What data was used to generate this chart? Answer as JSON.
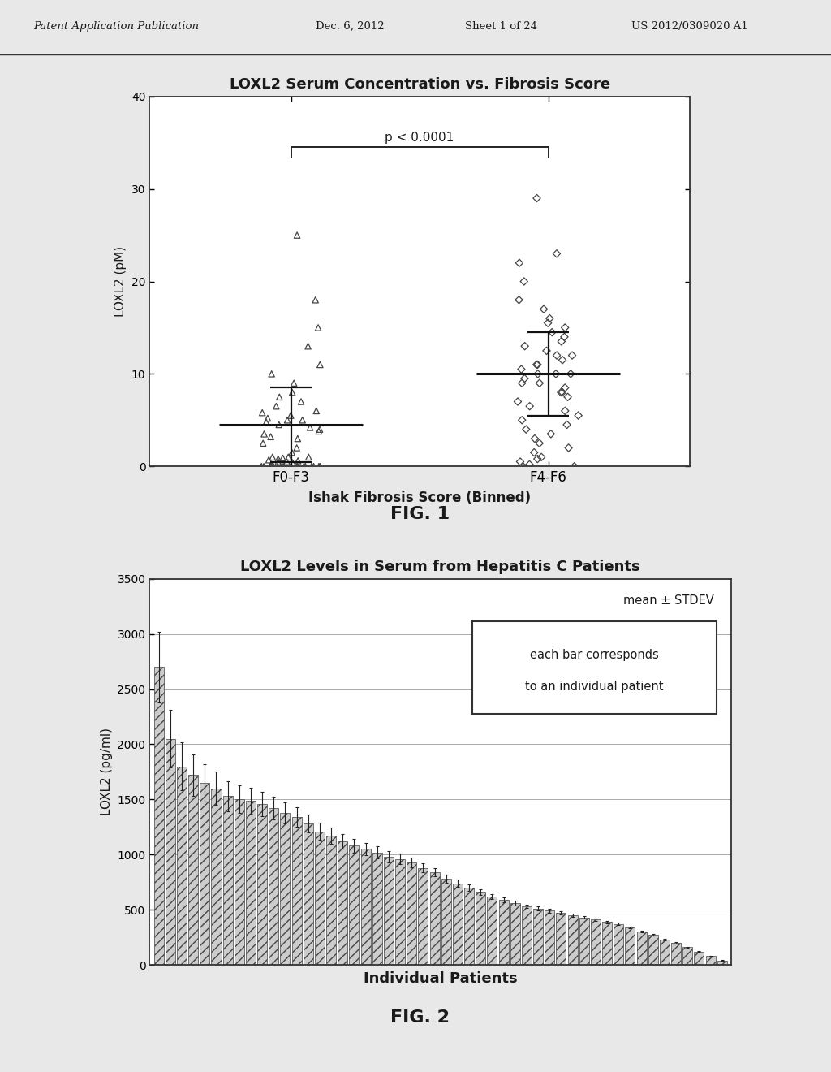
{
  "fig1_title": "LOXL2 Serum Concentration vs. Fibrosis Score",
  "fig1_xlabel": "Ishak Fibrosis Score (Binned)",
  "fig1_ylabel": "LOXL2 (pM)",
  "fig1_categories": [
    "F0-F3",
    "F4-F6"
  ],
  "fig1_ylim": [
    0,
    40
  ],
  "fig1_yticks": [
    0,
    10,
    20,
    30,
    40
  ],
  "fig1_pvalue": "p < 0.0001",
  "fig1_group1_points": [
    0.0,
    0.0,
    0.0,
    0.0,
    0.0,
    0.0,
    0.0,
    0.0,
    0.0,
    0.0,
    0.0,
    0.0,
    0.0,
    0.0,
    0.0,
    0.2,
    0.3,
    0.4,
    0.5,
    0.5,
    0.6,
    0.7,
    0.8,
    0.9,
    1.0,
    1.0,
    1.0,
    1.5,
    2.0,
    2.5,
    3.0,
    3.2,
    3.5,
    3.8,
    4.0,
    4.2,
    4.5,
    4.8,
    5.0,
    5.0,
    5.2,
    5.5,
    5.8,
    6.0,
    6.5,
    7.0,
    7.5,
    8.0,
    9.0,
    10.0,
    11.0,
    13.0,
    15.0,
    18.0,
    25.0
  ],
  "fig1_group1_mean": 4.5,
  "fig1_group1_sd": 4.0,
  "fig1_group2_points": [
    0.0,
    0.0,
    0.2,
    0.5,
    0.8,
    1.0,
    1.5,
    2.0,
    2.5,
    3.0,
    3.5,
    4.0,
    4.5,
    5.0,
    5.5,
    6.0,
    6.5,
    7.0,
    7.5,
    8.0,
    8.0,
    8.5,
    9.0,
    9.0,
    9.5,
    10.0,
    10.0,
    10.0,
    10.5,
    11.0,
    11.0,
    11.5,
    12.0,
    12.0,
    12.5,
    13.0,
    13.5,
    14.0,
    14.5,
    15.0,
    15.5,
    16.0,
    17.0,
    18.0,
    20.0,
    22.0,
    23.0,
    29.0
  ],
  "fig1_group2_mean": 10.0,
  "fig1_group2_sd": 4.5,
  "fig2_title": "LOXL2 Levels in Serum from Hepatitis C Patients",
  "fig2_xlabel": "Individual Patients",
  "fig2_ylabel": "LOXL2 (pg/ml)",
  "fig2_ylim": [
    0,
    3500
  ],
  "fig2_yticks": [
    0,
    500,
    1000,
    1500,
    2000,
    2500,
    3000,
    3500
  ],
  "fig2_bar_values": [
    2700,
    2050,
    1800,
    1720,
    1650,
    1600,
    1530,
    1500,
    1490,
    1460,
    1420,
    1380,
    1340,
    1280,
    1210,
    1170,
    1120,
    1080,
    1050,
    1020,
    980,
    960,
    930,
    880,
    840,
    780,
    740,
    700,
    660,
    620,
    590,
    560,
    530,
    510,
    490,
    470,
    450,
    430,
    410,
    390,
    370,
    340,
    300,
    270,
    230,
    200,
    160,
    120,
    80,
    40
  ],
  "fig2_bar_errors": [
    320,
    260,
    220,
    190,
    170,
    150,
    135,
    125,
    118,
    112,
    105,
    95,
    88,
    82,
    76,
    72,
    67,
    62,
    58,
    54,
    50,
    47,
    44,
    41,
    38,
    34,
    31,
    28,
    25,
    23,
    21,
    19,
    18,
    17,
    16,
    15,
    14,
    13,
    12,
    11,
    10,
    9,
    8,
    7,
    6,
    6,
    5,
    4,
    3,
    2
  ],
  "header_line1": "Patent Application Publication",
  "header_line2": "Dec. 6, 2012",
  "header_line3": "Sheet 1 of 24",
  "header_line4": "US 2012/0309020 A1",
  "fig1_label": "FIG. 1",
  "fig2_label": "FIG. 2",
  "bg_color": "#e8e8e8",
  "plot_bg_color": "#ffffff",
  "bar_fill_color": "#cccccc",
  "bar_hatch": "///",
  "bar_edge_color": "#555555",
  "text_color": "#1a1a1a",
  "scatter_color": "#555555",
  "header_sep_color": "#333333"
}
